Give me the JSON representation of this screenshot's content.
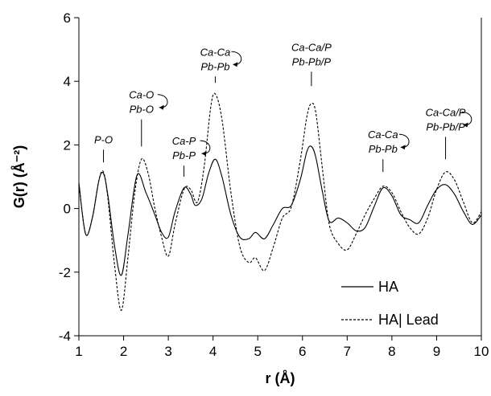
{
  "chart_data": {
    "type": "line",
    "xlabel": "r (Å)",
    "ylabel": "G(r) (Å⁻²)",
    "xlim": [
      1,
      10
    ],
    "ylim": [
      -4,
      6
    ],
    "x_ticks": [
      "1",
      "2",
      "3",
      "4",
      "5",
      "6",
      "7",
      "8",
      "9",
      "10"
    ],
    "y_ticks": [
      "-4",
      "-2",
      "0",
      "2",
      "4",
      "6"
    ],
    "grid": false,
    "legend_position": "bottom-right",
    "series": [
      {
        "name": "HA",
        "style": "solid",
        "x": [
          1.0,
          1.15,
          1.3,
          1.45,
          1.55,
          1.65,
          1.8,
          1.95,
          2.1,
          2.3,
          2.5,
          2.7,
          2.85,
          3.0,
          3.15,
          3.35,
          3.5,
          3.6,
          3.75,
          3.9,
          4.05,
          4.2,
          4.4,
          4.6,
          4.8,
          4.95,
          5.15,
          5.35,
          5.55,
          5.75,
          5.95,
          6.1,
          6.2,
          6.3,
          6.45,
          6.6,
          6.8,
          7.0,
          7.2,
          7.4,
          7.6,
          7.8,
          8.0,
          8.2,
          8.4,
          8.6,
          8.8,
          9.0,
          9.2,
          9.4,
          9.6,
          9.8,
          10.0
        ],
        "y": [
          0.8,
          -0.8,
          -0.3,
          0.9,
          1.1,
          0.4,
          -1.2,
          -2.1,
          -0.8,
          1.05,
          0.5,
          -0.2,
          -0.75,
          -0.9,
          -0.1,
          0.65,
          0.45,
          0.1,
          0.3,
          1.1,
          1.55,
          1.0,
          -0.2,
          -0.9,
          -0.95,
          -0.75,
          -0.95,
          -0.5,
          0.0,
          0.1,
          0.9,
          1.8,
          1.95,
          1.6,
          0.5,
          -0.4,
          -0.3,
          -0.45,
          -0.7,
          -0.6,
          0.05,
          0.65,
          0.4,
          -0.2,
          -0.35,
          -0.45,
          0.1,
          0.6,
          0.75,
          0.45,
          -0.1,
          -0.5,
          -0.2
        ]
      },
      {
        "name": "HA| Lead",
        "style": "dashed",
        "x": [
          1.0,
          1.15,
          1.3,
          1.45,
          1.55,
          1.65,
          1.8,
          1.95,
          2.1,
          2.25,
          2.4,
          2.55,
          2.7,
          2.85,
          3.0,
          3.15,
          3.35,
          3.5,
          3.65,
          3.8,
          3.95,
          4.05,
          4.2,
          4.4,
          4.6,
          4.8,
          4.95,
          5.15,
          5.35,
          5.55,
          5.75,
          5.95,
          6.1,
          6.2,
          6.3,
          6.45,
          6.6,
          6.8,
          7.0,
          7.2,
          7.4,
          7.6,
          7.8,
          8.0,
          8.2,
          8.4,
          8.6,
          8.8,
          9.0,
          9.2,
          9.4,
          9.6,
          9.8,
          10.0
        ],
        "y": [
          0.8,
          -0.8,
          -0.3,
          0.9,
          1.15,
          0.3,
          -1.8,
          -3.2,
          -1.5,
          0.5,
          1.55,
          1.1,
          0.0,
          -0.9,
          -1.5,
          -0.5,
          0.6,
          0.6,
          0.2,
          1.3,
          3.2,
          3.6,
          2.8,
          0.5,
          -1.2,
          -1.7,
          -1.55,
          -1.95,
          -1.2,
          -0.3,
          0.05,
          1.5,
          2.9,
          3.3,
          3.0,
          1.2,
          -0.5,
          -1.1,
          -1.3,
          -0.8,
          -0.2,
          0.3,
          0.7,
          0.5,
          -0.1,
          -0.6,
          -0.8,
          -0.3,
          0.6,
          1.15,
          0.9,
          0.2,
          -0.45,
          -0.1
        ]
      }
    ],
    "annotations": [
      {
        "lines": [
          "P-O"
        ],
        "x": 1.55,
        "marker_top": 1.85,
        "marker_bottom": 1.45
      },
      {
        "lines": [
          "Ca-O",
          "Pb-O"
        ],
        "x": 2.4,
        "marker_top": 2.8,
        "marker_bottom": 1.95
      },
      {
        "lines": [
          "Ca-P",
          "Pb-P"
        ],
        "x": 3.35,
        "marker_top": 1.35,
        "marker_bottom": 1.0
      },
      {
        "lines": [
          "Ca-Ca",
          "Pb-Pb"
        ],
        "x": 4.05,
        "marker_top": 4.15,
        "marker_bottom": 3.95
      },
      {
        "lines": [
          "Ca-Ca/P",
          "Pb-Pb/P"
        ],
        "x": 6.2,
        "marker_top": 4.3,
        "marker_bottom": 3.85
      },
      {
        "lines": [
          "Ca-Ca",
          "Pb-Pb"
        ],
        "x": 7.8,
        "marker_top": 1.55,
        "marker_bottom": 1.15
      },
      {
        "lines": [
          "Ca-Ca/P",
          "Pb-Pb/P"
        ],
        "x": 9.2,
        "marker_top": 2.25,
        "marker_bottom": 1.55
      }
    ]
  }
}
